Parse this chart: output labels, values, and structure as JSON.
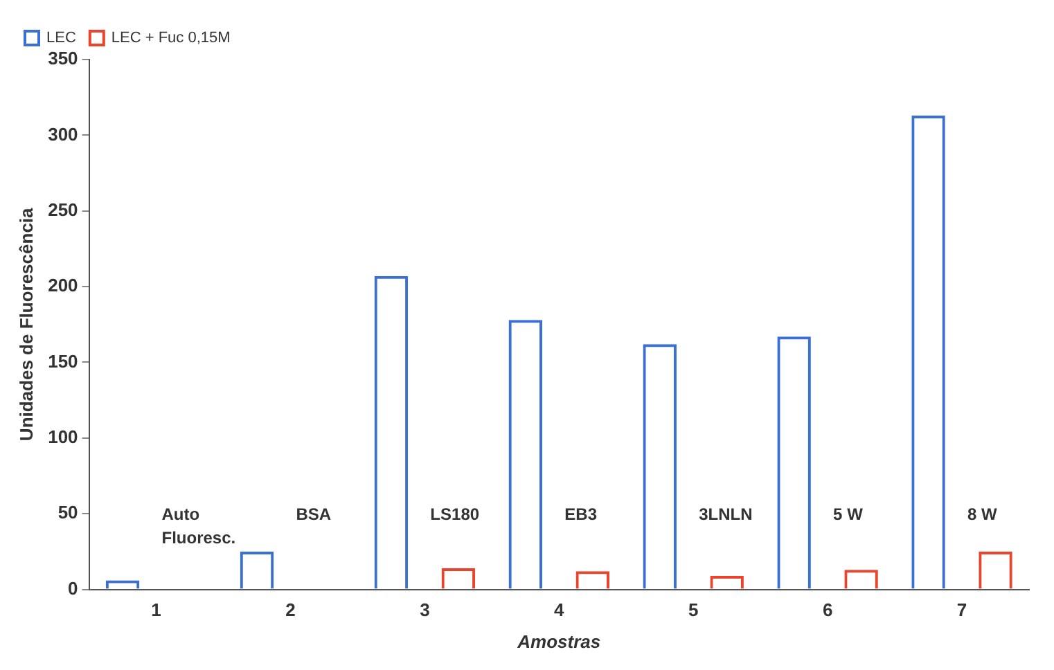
{
  "chart_data": {
    "type": "bar",
    "xlabel": "Amostras",
    "ylabel": "Unidades de Fluorescência",
    "categories": [
      "1",
      "2",
      "3",
      "4",
      "5",
      "6",
      "7"
    ],
    "series": [
      {
        "name": "LEC",
        "color": "#3a6fd8",
        "values": [
          6,
          25,
          207,
          178,
          162,
          167,
          313
        ]
      },
      {
        "name": "LEC + Fuc 0,15M",
        "color": "#e8452c",
        "values": [
          0,
          0,
          14,
          12,
          9,
          13,
          25
        ]
      }
    ],
    "ylim": [
      0,
      350
    ],
    "yticks": [
      0,
      50,
      100,
      150,
      200,
      250,
      300,
      350
    ],
    "grid": false,
    "legend": "top left",
    "annotations": [
      "Auto Fluoresc.",
      "BSA",
      "LS180",
      "EB3",
      "3LNLN",
      "5 W",
      "8 W"
    ]
  }
}
